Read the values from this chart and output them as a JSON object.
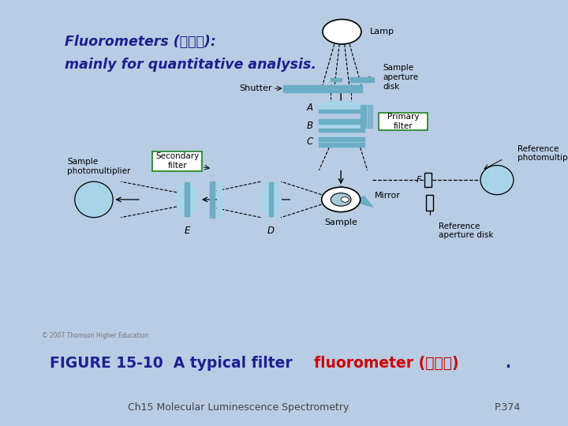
{
  "slide_bg": "#b8cce4",
  "panel_bg": "#ffffff",
  "caption_bg": "#ffffff",
  "title_color": "#1f1f8f",
  "title_line1": "Fluorometers (螢光計):",
  "title_line2": "mainly for quantitative analysis.",
  "title_fontsize": 12.5,
  "caption_prefix": "FIGURE 15-10  A typical filter ",
  "caption_red": "fluorometer (螢光計)",
  "caption_suffix": ".",
  "caption_blue": "#1f1f8f",
  "caption_red_color": "#cc0000",
  "caption_fontsize": 13.5,
  "footer_left": "Ch15 Molecular Luminescence Spectrometry",
  "footer_right": "P.374",
  "footer_color": "#444444",
  "footer_fontsize": 9,
  "copyright": "© 2007 Thomson Higher Education",
  "blue_dark": "#5b9bbd",
  "blue_light": "#a8d4e8",
  "blue_medium": "#6baec6",
  "green_box": "#2a8a2a"
}
